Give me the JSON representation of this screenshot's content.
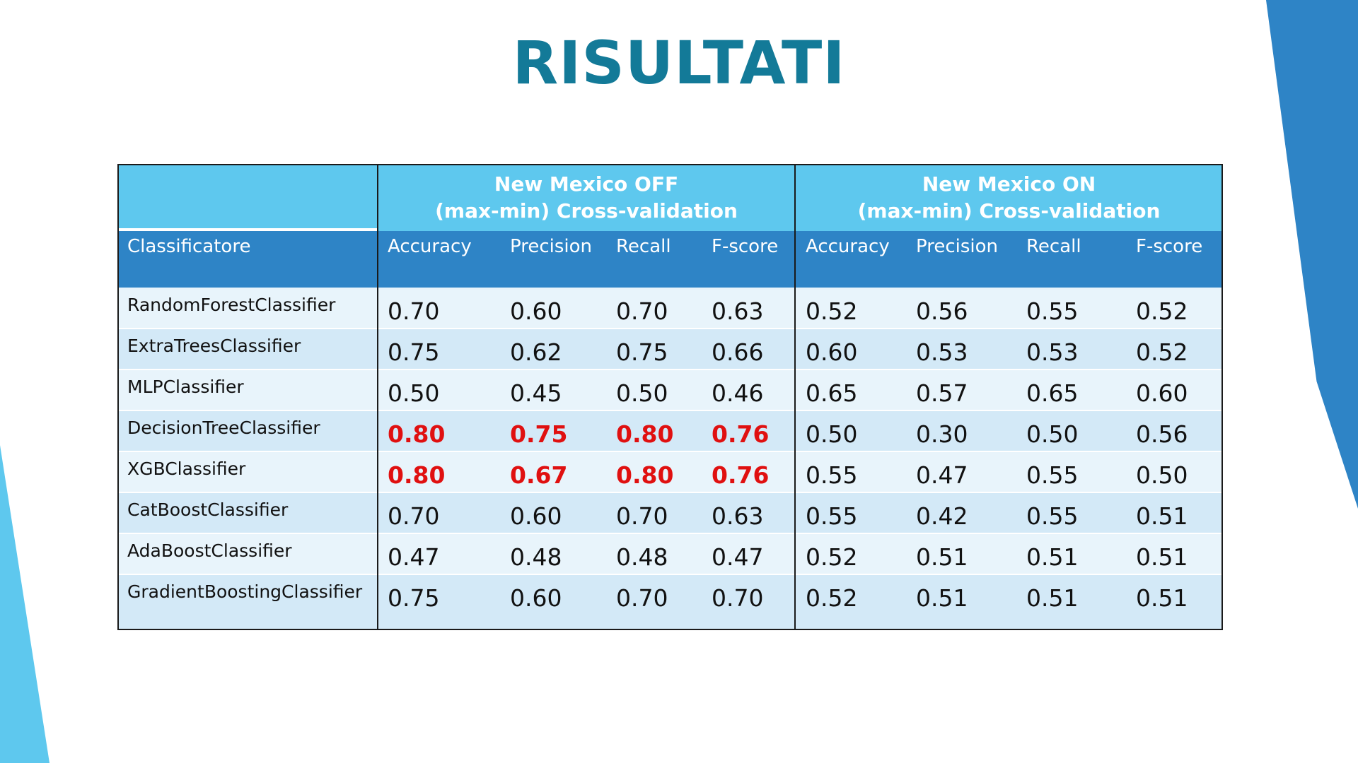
{
  "title": "RISULTATI",
  "table": {
    "groups": [
      {
        "line1": "New Mexico OFF",
        "line2": "(max-min) Cross-validation"
      },
      {
        "line1": "New Mexico ON",
        "line2": "(max-min) Cross-validation"
      }
    ],
    "row_header": "Classificatore",
    "metrics_off": [
      "Accuracy",
      "Precision",
      "Recall",
      "F-score"
    ],
    "metrics_on": [
      "Accuracy",
      "Precision",
      "Recall",
      "F-score"
    ],
    "highlight_color": "#e01010",
    "rows": [
      {
        "name": "RandomForestClassifier",
        "off": [
          "0.70",
          "0.60",
          "0.70",
          "0.63"
        ],
        "on": [
          "0.52",
          "0.56",
          "0.55",
          "0.52"
        ],
        "highlight_off": false
      },
      {
        "name": "ExtraTreesClassifier",
        "off": [
          "0.75",
          "0.62",
          "0.75",
          "0.66"
        ],
        "on": [
          "0.60",
          "0.53",
          "0.53",
          "0.52"
        ],
        "highlight_off": false
      },
      {
        "name": "MLPClassifier",
        "off": [
          "0.50",
          "0.45",
          "0.50",
          "0.46"
        ],
        "on": [
          "0.65",
          "0.57",
          "0.65",
          "0.60"
        ],
        "highlight_off": false
      },
      {
        "name": "DecisionTreeClassifier",
        "off": [
          "0.80",
          "0.75",
          "0.80",
          "0.76"
        ],
        "on": [
          "0.50",
          "0.30",
          "0.50",
          "0.56"
        ],
        "highlight_off": true
      },
      {
        "name": "XGBClassifier",
        "off": [
          "0.80",
          "0.67",
          "0.80",
          "0.76"
        ],
        "on": [
          "0.55",
          "0.47",
          "0.55",
          "0.50"
        ],
        "highlight_off": true
      },
      {
        "name": "CatBoostClassifier",
        "off": [
          "0.70",
          "0.60",
          "0.70",
          "0.63"
        ],
        "on": [
          "0.55",
          "0.42",
          "0.55",
          "0.51"
        ],
        "highlight_off": false
      },
      {
        "name": "AdaBoostClassifier",
        "off": [
          "0.47",
          "0.48",
          "0.48",
          "0.47"
        ],
        "on": [
          "0.52",
          "0.51",
          "0.51",
          "0.51"
        ],
        "highlight_off": false
      },
      {
        "name": "GradientBoostingClassifier",
        "off": [
          "0.75",
          "0.60",
          "0.70",
          "0.70"
        ],
        "on": [
          "0.52",
          "0.51",
          "0.51",
          "0.51"
        ],
        "highlight_off": false
      }
    ]
  }
}
